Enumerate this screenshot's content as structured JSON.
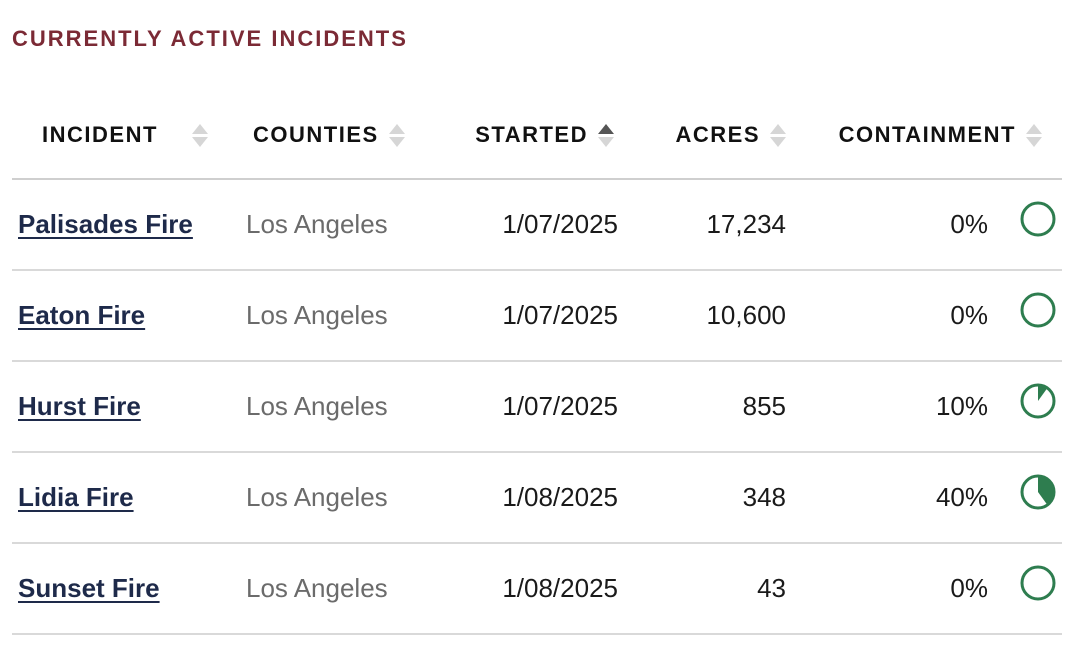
{
  "section_title": "CURRENTLY ACTIVE INCIDENTS",
  "colors": {
    "title": "#7b2a35",
    "link": "#1e2a4a",
    "pie": "#2e7d4f"
  },
  "columns": {
    "incident": "INCIDENT",
    "counties": "COUNTIES",
    "started": "STARTED",
    "acres": "ACRES",
    "containment": "CONTAINMENT"
  },
  "sort": {
    "column": "started",
    "direction": "ascending"
  },
  "rows": [
    {
      "incident": "Palisades Fire",
      "counties": "Los Angeles",
      "started": "1/07/2025",
      "acres": "17,234",
      "containment": "0%",
      "containment_value": 0
    },
    {
      "incident": "Eaton Fire",
      "counties": "Los Angeles",
      "started": "1/07/2025",
      "acres": "10,600",
      "containment": "0%",
      "containment_value": 0
    },
    {
      "incident": "Hurst Fire",
      "counties": "Los Angeles",
      "started": "1/07/2025",
      "acres": "855",
      "containment": "10%",
      "containment_value": 10
    },
    {
      "incident": "Lidia Fire",
      "counties": "Los Angeles",
      "started": "1/08/2025",
      "acres": "348",
      "containment": "40%",
      "containment_value": 40
    },
    {
      "incident": "Sunset Fire",
      "counties": "Los Angeles",
      "started": "1/08/2025",
      "acres": "43",
      "containment": "0%",
      "containment_value": 0
    }
  ]
}
